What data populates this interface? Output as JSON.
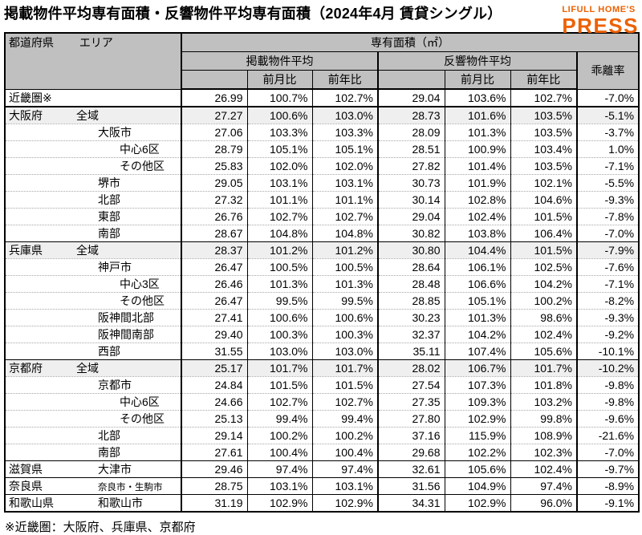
{
  "title": "掲載物件平均専有面積・反響物件平均専有面積（2024年4月 賃貸シングル）",
  "logo": {
    "brand": "LIFULL HOME'S",
    "press": "PRESS",
    "color": "#ED6103"
  },
  "footnote": "※近畿圏：大阪府、兵庫県、京都府",
  "table": {
    "header": {
      "pref_label": "都道府県",
      "area_label": "エリア",
      "unit_group": "専有面積（㎡）",
      "listed_group": "掲載物件平均",
      "response_group": "反響物件平均",
      "divergence_label": "乖離率",
      "mom_label": "前月比",
      "yoy_label": "前年比"
    },
    "columns": [
      "掲載物件平均",
      "前月比",
      "前年比",
      "反響物件平均",
      "前月比",
      "前年比",
      "乖離率"
    ],
    "rows": [
      {
        "pref": "近畿圏※",
        "area": "",
        "indent": 0,
        "sep": "none",
        "shaded": false,
        "small": false,
        "values": [
          "26.99",
          "100.7%",
          "102.7%",
          "29.04",
          "103.6%",
          "102.7%",
          "-7.0%"
        ]
      },
      {
        "pref": "大阪府",
        "area": "全域",
        "indent": 1,
        "sep": "thick",
        "shaded": true,
        "small": false,
        "values": [
          "27.27",
          "100.6%",
          "103.0%",
          "28.73",
          "101.6%",
          "103.5%",
          "-5.1%"
        ]
      },
      {
        "pref": "",
        "area": "大阪市",
        "indent": 2,
        "sep": "dotted",
        "shaded": false,
        "small": false,
        "values": [
          "27.06",
          "103.3%",
          "103.3%",
          "28.09",
          "101.3%",
          "103.5%",
          "-3.7%"
        ]
      },
      {
        "pref": "",
        "area": "中心6区",
        "indent": 3,
        "sep": "dotted",
        "shaded": false,
        "small": false,
        "values": [
          "28.79",
          "105.1%",
          "105.1%",
          "28.51",
          "100.9%",
          "103.4%",
          "1.0%"
        ]
      },
      {
        "pref": "",
        "area": "その他区",
        "indent": 3,
        "sep": "dotted",
        "shaded": false,
        "small": false,
        "values": [
          "25.83",
          "102.0%",
          "102.0%",
          "27.82",
          "101.4%",
          "103.5%",
          "-7.1%"
        ]
      },
      {
        "pref": "",
        "area": "堺市",
        "indent": 2,
        "sep": "dotted",
        "shaded": false,
        "small": false,
        "values": [
          "29.05",
          "103.1%",
          "103.1%",
          "30.73",
          "101.9%",
          "102.1%",
          "-5.5%"
        ]
      },
      {
        "pref": "",
        "area": "北部",
        "indent": 2,
        "sep": "dotted",
        "shaded": false,
        "small": false,
        "values": [
          "27.32",
          "101.1%",
          "101.1%",
          "30.14",
          "102.8%",
          "104.6%",
          "-9.3%"
        ]
      },
      {
        "pref": "",
        "area": "東部",
        "indent": 2,
        "sep": "dotted",
        "shaded": false,
        "small": false,
        "values": [
          "26.76",
          "102.7%",
          "102.7%",
          "29.04",
          "102.4%",
          "101.5%",
          "-7.8%"
        ]
      },
      {
        "pref": "",
        "area": "南部",
        "indent": 2,
        "sep": "dotted",
        "shaded": false,
        "small": false,
        "values": [
          "28.67",
          "104.8%",
          "104.8%",
          "30.82",
          "103.8%",
          "106.4%",
          "-7.0%"
        ]
      },
      {
        "pref": "兵庫県",
        "area": "全域",
        "indent": 1,
        "sep": "solid",
        "shaded": true,
        "small": false,
        "values": [
          "28.37",
          "101.2%",
          "101.2%",
          "30.80",
          "104.4%",
          "101.5%",
          "-7.9%"
        ]
      },
      {
        "pref": "",
        "area": "神戸市",
        "indent": 2,
        "sep": "dotted",
        "shaded": false,
        "small": false,
        "values": [
          "26.47",
          "100.5%",
          "100.5%",
          "28.64",
          "106.1%",
          "102.5%",
          "-7.6%"
        ]
      },
      {
        "pref": "",
        "area": "中心3区",
        "indent": 3,
        "sep": "dotted",
        "shaded": false,
        "small": false,
        "values": [
          "26.46",
          "101.3%",
          "101.3%",
          "28.48",
          "106.6%",
          "104.2%",
          "-7.1%"
        ]
      },
      {
        "pref": "",
        "area": "その他区",
        "indent": 3,
        "sep": "dotted",
        "shaded": false,
        "small": false,
        "values": [
          "26.47",
          "99.5%",
          "99.5%",
          "28.85",
          "105.1%",
          "100.2%",
          "-8.2%"
        ]
      },
      {
        "pref": "",
        "area": "阪神間北部",
        "indent": 2,
        "sep": "dotted",
        "shaded": false,
        "small": false,
        "values": [
          "27.41",
          "100.6%",
          "100.6%",
          "30.23",
          "101.3%",
          "98.6%",
          "-9.3%"
        ]
      },
      {
        "pref": "",
        "area": "阪神間南部",
        "indent": 2,
        "sep": "dotted",
        "shaded": false,
        "small": false,
        "values": [
          "29.40",
          "100.3%",
          "100.3%",
          "32.37",
          "104.2%",
          "102.4%",
          "-9.2%"
        ]
      },
      {
        "pref": "",
        "area": "西部",
        "indent": 2,
        "sep": "dotted",
        "shaded": false,
        "small": false,
        "values": [
          "31.55",
          "103.0%",
          "103.0%",
          "35.11",
          "107.4%",
          "105.6%",
          "-10.1%"
        ]
      },
      {
        "pref": "京都府",
        "area": "全域",
        "indent": 1,
        "sep": "solid",
        "shaded": true,
        "small": false,
        "values": [
          "25.17",
          "101.7%",
          "101.7%",
          "28.02",
          "106.7%",
          "101.7%",
          "-10.2%"
        ]
      },
      {
        "pref": "",
        "area": "京都市",
        "indent": 2,
        "sep": "dotted",
        "shaded": false,
        "small": false,
        "values": [
          "24.84",
          "101.5%",
          "101.5%",
          "27.54",
          "107.3%",
          "101.8%",
          "-9.8%"
        ]
      },
      {
        "pref": "",
        "area": "中心6区",
        "indent": 3,
        "sep": "dotted",
        "shaded": false,
        "small": false,
        "values": [
          "24.66",
          "102.7%",
          "102.7%",
          "27.35",
          "109.3%",
          "103.2%",
          "-9.8%"
        ]
      },
      {
        "pref": "",
        "area": "その他区",
        "indent": 3,
        "sep": "dotted",
        "shaded": false,
        "small": false,
        "values": [
          "25.13",
          "99.4%",
          "99.4%",
          "27.80",
          "102.9%",
          "99.8%",
          "-9.6%"
        ]
      },
      {
        "pref": "",
        "area": "北部",
        "indent": 2,
        "sep": "dotted",
        "shaded": false,
        "small": false,
        "values": [
          "29.14",
          "100.2%",
          "100.2%",
          "37.16",
          "115.9%",
          "108.9%",
          "-21.6%"
        ]
      },
      {
        "pref": "",
        "area": "南部",
        "indent": 2,
        "sep": "dotted",
        "shaded": false,
        "small": false,
        "values": [
          "27.61",
          "100.4%",
          "100.4%",
          "29.68",
          "102.2%",
          "102.3%",
          "-7.0%"
        ]
      },
      {
        "pref": "滋賀県",
        "area": "大津市",
        "indent": 2,
        "sep": "solid",
        "shaded": false,
        "small": false,
        "values": [
          "29.46",
          "97.4%",
          "97.4%",
          "32.61",
          "105.6%",
          "102.4%",
          "-9.7%"
        ]
      },
      {
        "pref": "奈良県",
        "area": "奈良市・生駒市",
        "indent": 2,
        "sep": "solid",
        "shaded": false,
        "small": true,
        "values": [
          "28.75",
          "103.1%",
          "103.1%",
          "31.56",
          "104.9%",
          "97.4%",
          "-8.9%"
        ]
      },
      {
        "pref": "和歌山県",
        "area": "和歌山市",
        "indent": 2,
        "sep": "solid",
        "shaded": false,
        "small": false,
        "values": [
          "31.19",
          "102.9%",
          "102.9%",
          "34.31",
          "102.9%",
          "96.0%",
          "-9.1%"
        ]
      }
    ]
  }
}
